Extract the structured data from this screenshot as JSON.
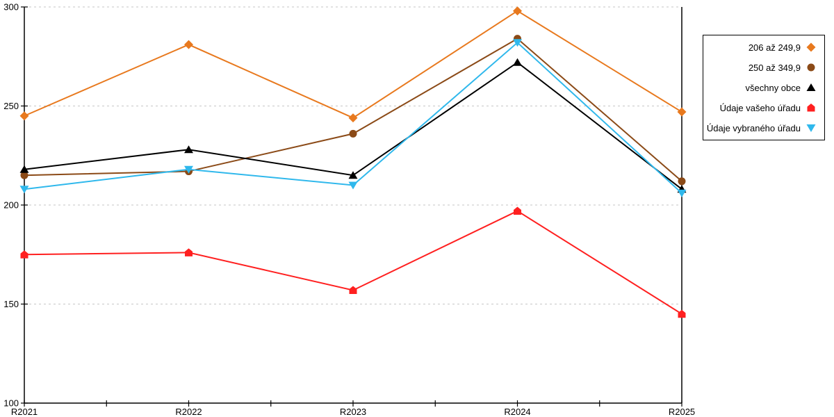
{
  "chart_data": {
    "type": "line",
    "x_categories": [
      "R2021",
      "R2022",
      "R2023",
      "R2024",
      "R2025"
    ],
    "y_axis": {
      "min": 100,
      "max": 300,
      "tick_step": 50,
      "tick_labels": [
        "100",
        "150",
        "200",
        "250",
        "300"
      ]
    },
    "grid": "horizontal dashed gridlines at 150/200/250/300",
    "legend_position": "right-boxed",
    "series": [
      {
        "name": "206 až 249,9",
        "marker": "diamond",
        "color": "#E8791E",
        "values": [
          245,
          281,
          244,
          298,
          247
        ]
      },
      {
        "name": "250 až 349,9",
        "marker": "circle",
        "color": "#8B4A17",
        "values": [
          215,
          217,
          236,
          284,
          212
        ]
      },
      {
        "name": "všechny obce",
        "marker": "triangle-up",
        "color": "#000000",
        "values": [
          218,
          228,
          215,
          272,
          208
        ]
      },
      {
        "name": "Údaje vašeho úřadu",
        "marker": "pentagon",
        "color": "#FF2020",
        "values": [
          175,
          176,
          157,
          197,
          145
        ]
      },
      {
        "name": "Údaje vybraného úřadu",
        "marker": "triangle-down",
        "color": "#2FB8EC",
        "values": [
          208,
          218,
          210,
          282,
          206
        ]
      }
    ],
    "colors": {
      "axis": "#000000",
      "gridline": "#C6C6C6",
      "text": "#000000"
    }
  }
}
